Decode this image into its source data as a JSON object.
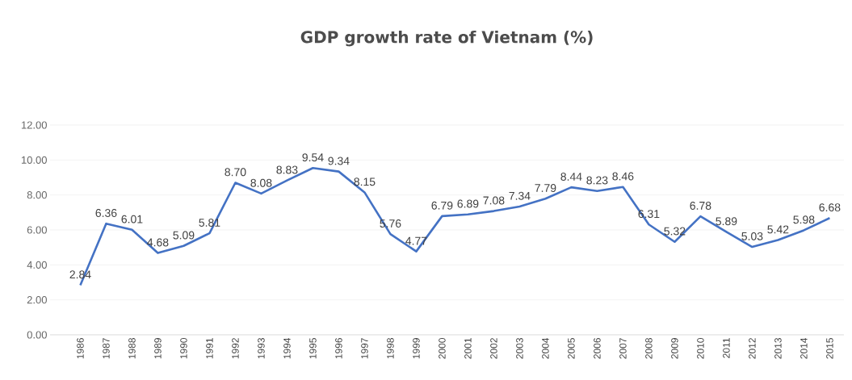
{
  "chart_data": {
    "type": "line",
    "title": "GDP growth rate of Vietnam (%)",
    "categories": [
      "1986",
      "1987",
      "1988",
      "1989",
      "1990",
      "1991",
      "1992",
      "1993",
      "1994",
      "1995",
      "1996",
      "1997",
      "1998",
      "1999",
      "2000",
      "2001",
      "2002",
      "2003",
      "2004",
      "2005",
      "2006",
      "2007",
      "2008",
      "2009",
      "2010",
      "2011",
      "2012",
      "2013",
      "2014",
      "2015"
    ],
    "series": [
      {
        "color": "#4472c4",
        "values": [
          2.84,
          6.36,
          6.01,
          4.68,
          5.09,
          5.81,
          8.7,
          8.08,
          8.83,
          9.54,
          9.34,
          8.15,
          5.76,
          4.77,
          6.79,
          6.89,
          7.08,
          7.34,
          7.79,
          8.44,
          8.23,
          8.46,
          6.31,
          5.32,
          6.78,
          5.89,
          5.03,
          5.42,
          5.98,
          6.68
        ],
        "value_labels": [
          "2.84",
          "6.36",
          "6.01",
          "4.68",
          "5.09",
          "5.81",
          "8.70",
          "8.08",
          "8.83",
          "9.54",
          "9.34",
          "8.15",
          "5.76",
          "4.77",
          "6.79",
          "6.89",
          "7.08",
          "7.34",
          "7.79",
          "8.44",
          "8.23",
          "8.46",
          "6.31",
          "5.32",
          "6.78",
          "5.89",
          "5.03",
          "5.42",
          "5.98",
          "6.68"
        ]
      }
    ],
    "ylim": [
      0,
      12
    ],
    "yticks": [
      {
        "value": 0,
        "label": "0.00"
      },
      {
        "value": 2,
        "label": "2.00"
      },
      {
        "value": 4,
        "label": "4.00"
      },
      {
        "value": 6,
        "label": "6.00"
      },
      {
        "value": 8,
        "label": "8.00"
      },
      {
        "value": 10,
        "label": "10.00"
      },
      {
        "value": 12,
        "label": "12.00"
      }
    ],
    "grid": "y",
    "legend": false,
    "marker": "none",
    "line_style": "solid"
  }
}
